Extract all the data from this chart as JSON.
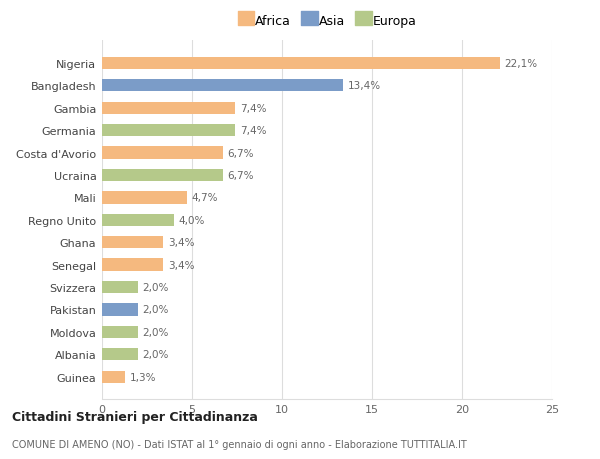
{
  "categories": [
    "Nigeria",
    "Bangladesh",
    "Gambia",
    "Germania",
    "Costa d'Avorio",
    "Ucraina",
    "Mali",
    "Regno Unito",
    "Ghana",
    "Senegal",
    "Svizzera",
    "Pakistan",
    "Moldova",
    "Albania",
    "Guinea"
  ],
  "values": [
    22.1,
    13.4,
    7.4,
    7.4,
    6.7,
    6.7,
    4.7,
    4.0,
    3.4,
    3.4,
    2.0,
    2.0,
    2.0,
    2.0,
    1.3
  ],
  "labels": [
    "22,1%",
    "13,4%",
    "7,4%",
    "7,4%",
    "6,7%",
    "6,7%",
    "4,7%",
    "4,0%",
    "3,4%",
    "3,4%",
    "2,0%",
    "2,0%",
    "2,0%",
    "2,0%",
    "1,3%"
  ],
  "continents": [
    "Africa",
    "Asia",
    "Africa",
    "Europa",
    "Africa",
    "Europa",
    "Africa",
    "Europa",
    "Africa",
    "Africa",
    "Europa",
    "Asia",
    "Europa",
    "Europa",
    "Africa"
  ],
  "colors": {
    "Africa": "#F5B97F",
    "Asia": "#7B9CC8",
    "Europa": "#B5C98A"
  },
  "xlim": [
    0,
    25
  ],
  "xticks": [
    0,
    5,
    10,
    15,
    20,
    25
  ],
  "title": "Cittadini Stranieri per Cittadinanza",
  "subtitle": "COMUNE DI AMENO (NO) - Dati ISTAT al 1° gennaio di ogni anno - Elaborazione TUTTITALIA.IT",
  "background_color": "#ffffff",
  "grid_color": "#dddddd"
}
